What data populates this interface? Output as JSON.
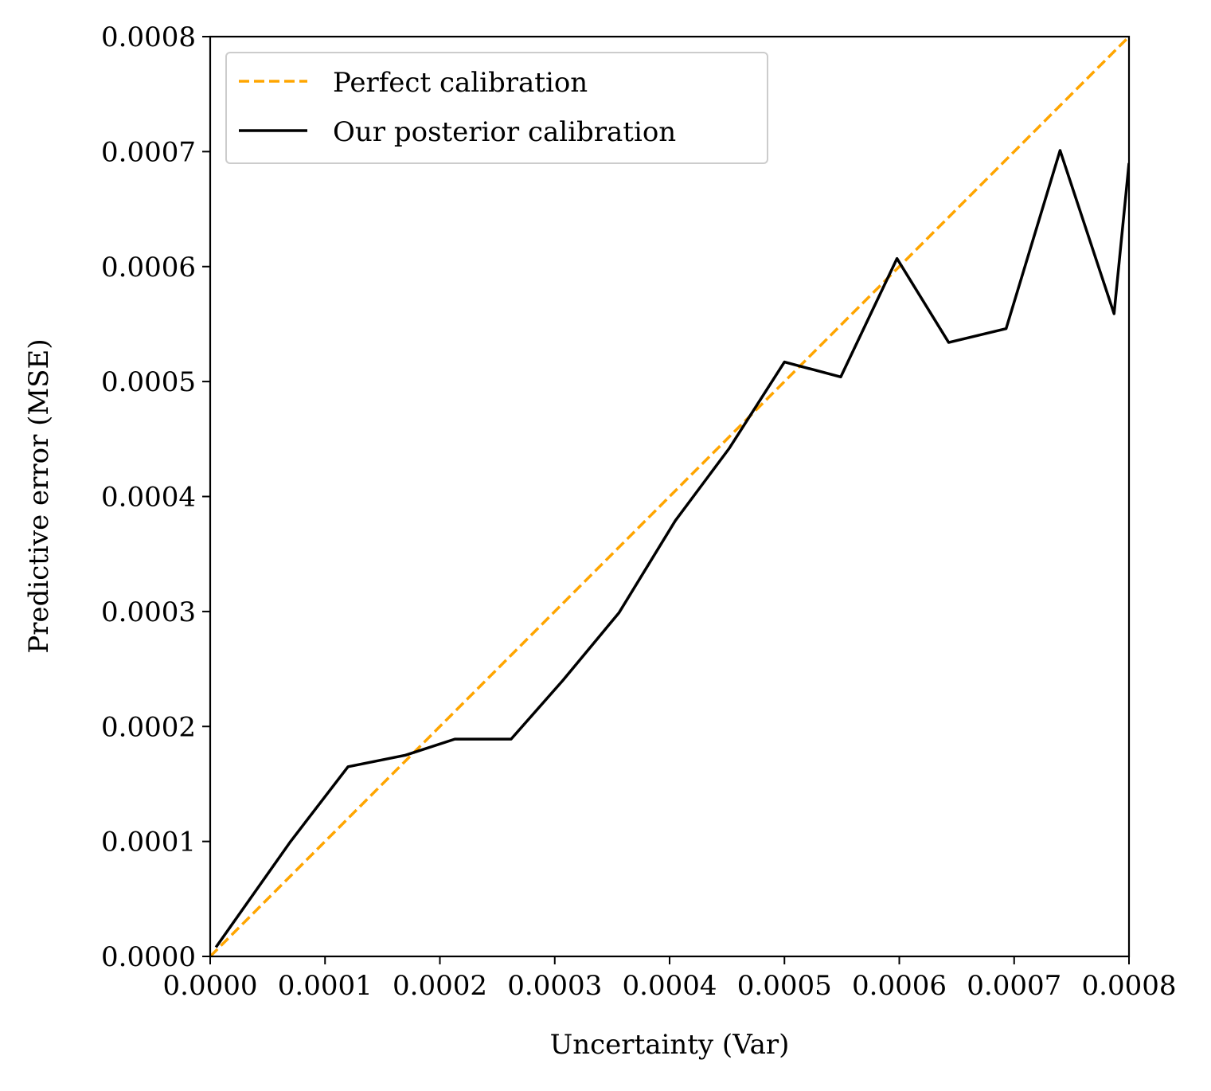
{
  "chart_data": {
    "type": "line",
    "title": "",
    "xlabel": "Uncertainty (Var)",
    "ylabel": "Predictive error (MSE)",
    "xlim": [
      0,
      0.0008
    ],
    "ylim": [
      0,
      0.0008
    ],
    "x_ticks": [
      "0.0000",
      "0.0001",
      "0.0002",
      "0.0003",
      "0.0004",
      "0.0005",
      "0.0006",
      "0.0007",
      "0.0008"
    ],
    "y_ticks": [
      "0.0000",
      "0.0001",
      "0.0002",
      "0.0003",
      "0.0004",
      "0.0005",
      "0.0006",
      "0.0007",
      "0.0008"
    ],
    "tick_values": [
      0,
      0.0001,
      0.0002,
      0.0003,
      0.0004,
      0.0005,
      0.0006,
      0.0007,
      0.0008
    ],
    "grid": false,
    "legend_position": "top-left",
    "series": [
      {
        "name": "Perfect calibration",
        "style": "dashed",
        "color": "#FFA500",
        "x": [
          0,
          0.0008
        ],
        "y": [
          0,
          0.0008
        ]
      },
      {
        "name": "Our posterior calibration",
        "style": "solid",
        "color": "#000000",
        "x": [
          5e-06,
          7e-05,
          0.00012,
          0.00017,
          0.000213,
          0.000262,
          0.000307,
          0.000356,
          0.000405,
          0.000452,
          0.0005,
          0.000549,
          0.000598,
          0.000643,
          0.000693,
          0.00074,
          0.000787,
          0.0008
        ],
        "y": [
          8e-06,
          0.0001,
          0.000165,
          0.000175,
          0.000189,
          0.000189,
          0.00024,
          0.000299,
          0.000379,
          0.000442,
          0.000517,
          0.000504,
          0.000607,
          0.000534,
          0.000546,
          0.000701,
          0.000559,
          0.00069
        ]
      }
    ]
  }
}
